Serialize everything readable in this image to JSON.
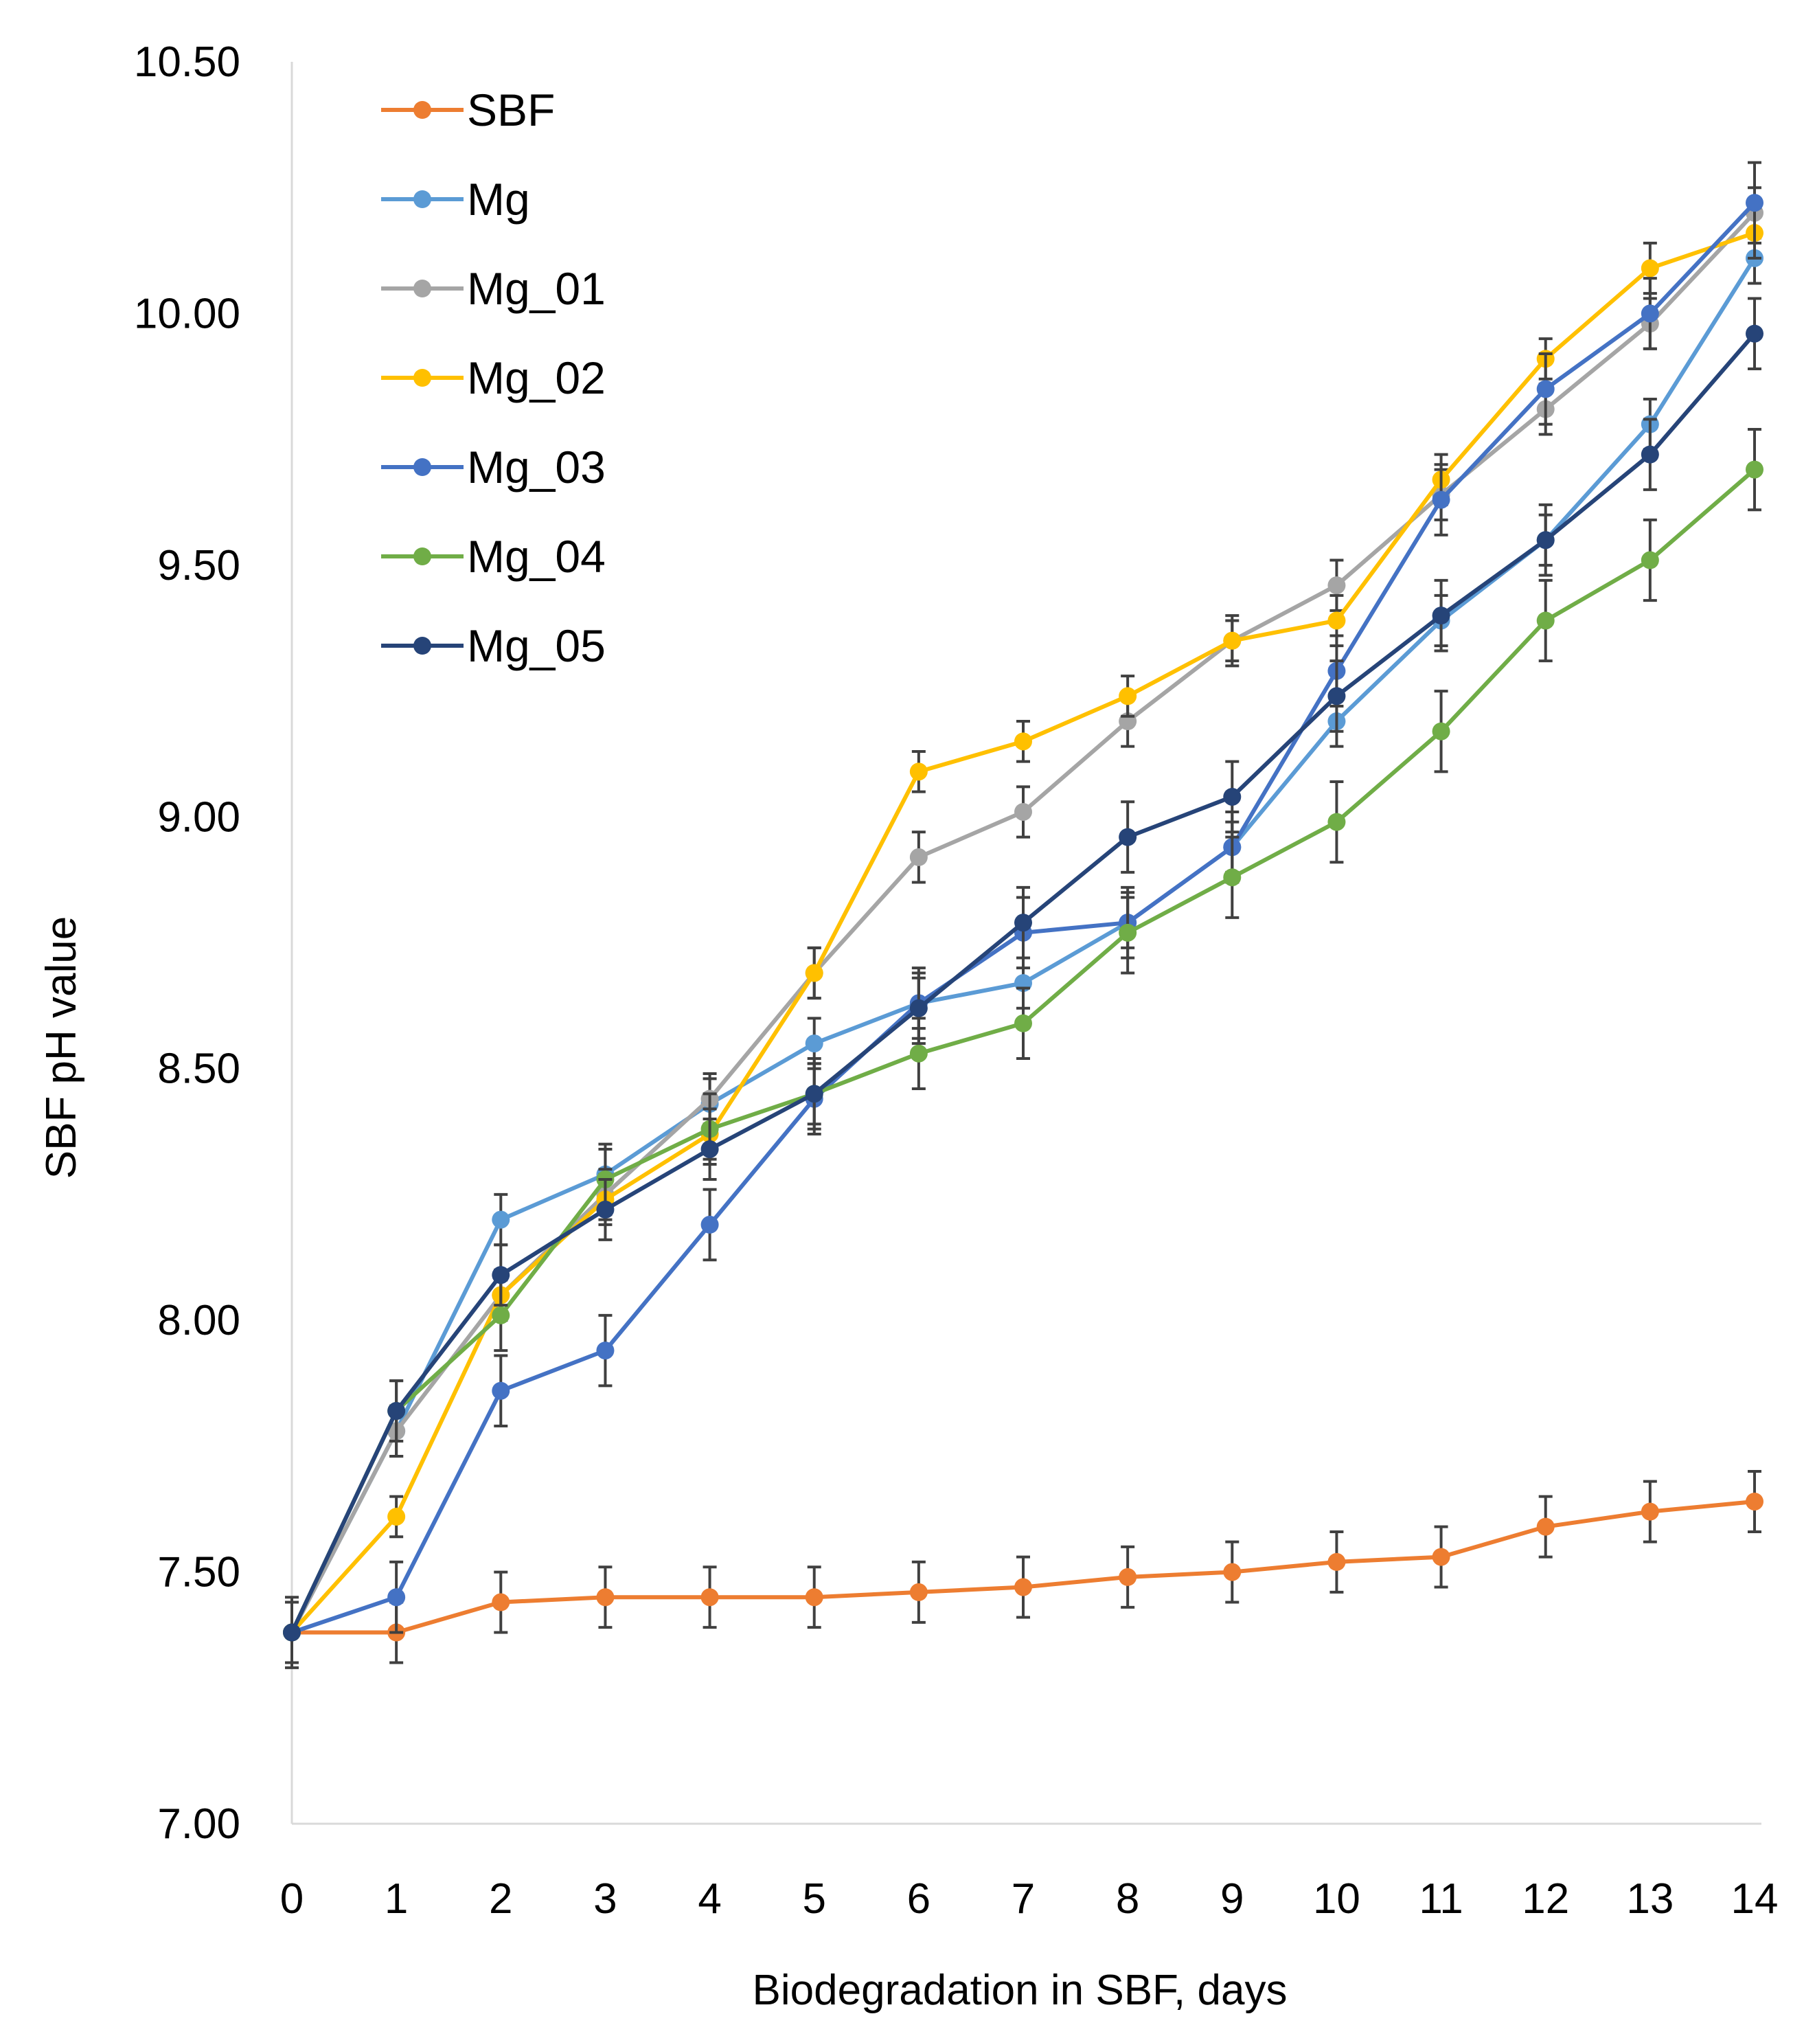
{
  "chart_data": {
    "type": "line",
    "title": "",
    "xlabel": "Biodegradation in SBF, days",
    "ylabel": "SBF pH value",
    "xlim": [
      0,
      14
    ],
    "ylim": [
      7.0,
      10.5
    ],
    "x_ticks": [
      "0",
      "1",
      "2",
      "3",
      "4",
      "5",
      "6",
      "7",
      "8",
      "9",
      "10",
      "11",
      "12",
      "13",
      "14"
    ],
    "y_ticks": [
      "7.00",
      "7.50",
      "8.00",
      "8.50",
      "9.00",
      "9.50",
      "10.00",
      "10.50"
    ],
    "grid": false,
    "legend_position": "top-left",
    "error_bars": true,
    "x": [
      0,
      1,
      2,
      3,
      4,
      5,
      6,
      7,
      8,
      9,
      10,
      11,
      12,
      13,
      14
    ],
    "series": [
      {
        "name": "SBF",
        "color": "#ED7D31",
        "values": [
          7.38,
          7.38,
          7.44,
          7.45,
          7.45,
          7.45,
          7.46,
          7.47,
          7.49,
          7.5,
          7.52,
          7.53,
          7.59,
          7.62,
          7.64
        ],
        "errors": [
          0.07,
          0.06,
          0.06,
          0.06,
          0.06,
          0.06,
          0.06,
          0.06,
          0.06,
          0.06,
          0.06,
          0.06,
          0.06,
          0.06,
          0.06
        ]
      },
      {
        "name": "Mg",
        "color": "#5B9BD5",
        "values": [
          7.38,
          7.78,
          8.2,
          8.29,
          8.43,
          8.55,
          8.63,
          8.67,
          8.79,
          8.94,
          9.19,
          9.39,
          9.55,
          9.78,
          10.11
        ],
        "errors": [
          0.06,
          0.05,
          0.05,
          0.05,
          0.05,
          0.05,
          0.05,
          0.05,
          0.05,
          0.05,
          0.05,
          0.05,
          0.05,
          0.05,
          0.05
        ]
      },
      {
        "name": "Mg_01",
        "color": "#A5A5A5",
        "values": [
          7.38,
          7.78,
          8.05,
          8.25,
          8.44,
          8.69,
          8.92,
          9.01,
          9.19,
          9.35,
          9.46,
          9.64,
          9.81,
          9.98,
          10.2
        ],
        "errors": [
          0.06,
          0.05,
          0.05,
          0.05,
          0.05,
          0.05,
          0.05,
          0.05,
          0.05,
          0.05,
          0.05,
          0.05,
          0.05,
          0.05,
          0.05
        ]
      },
      {
        "name": "Mg_02",
        "color": "#FFC000",
        "values": [
          7.38,
          7.61,
          8.05,
          8.24,
          8.37,
          8.69,
          9.09,
          9.15,
          9.24,
          9.35,
          9.39,
          9.67,
          9.91,
          10.09,
          10.16
        ],
        "errors": [
          0.06,
          0.04,
          0.05,
          0.05,
          0.05,
          0.05,
          0.04,
          0.04,
          0.04,
          0.04,
          0.05,
          0.05,
          0.04,
          0.05,
          0.05
        ]
      },
      {
        "name": "Mg_03",
        "color": "#4472C4",
        "values": [
          7.38,
          7.45,
          7.86,
          7.94,
          8.19,
          8.44,
          8.63,
          8.77,
          8.79,
          8.94,
          9.29,
          9.63,
          9.85,
          10.0,
          10.22
        ],
        "errors": [
          0.06,
          0.07,
          0.07,
          0.07,
          0.07,
          0.07,
          0.07,
          0.07,
          0.07,
          0.07,
          0.07,
          0.07,
          0.07,
          0.07,
          0.08
        ]
      },
      {
        "name": "Mg_04",
        "color": "#70AD47",
        "values": [
          7.38,
          7.82,
          8.01,
          8.28,
          8.38,
          8.45,
          8.53,
          8.59,
          8.77,
          8.88,
          8.99,
          9.17,
          9.39,
          9.51,
          9.69
        ],
        "errors": [
          0.06,
          0.06,
          0.07,
          0.07,
          0.07,
          0.07,
          0.07,
          0.07,
          0.08,
          0.08,
          0.08,
          0.08,
          0.08,
          0.08,
          0.08
        ]
      },
      {
        "name": "Mg_05",
        "color": "#264478",
        "values": [
          7.38,
          7.82,
          8.09,
          8.22,
          8.34,
          8.45,
          8.62,
          8.79,
          8.96,
          9.04,
          9.24,
          9.4,
          9.55,
          9.72,
          9.96
        ],
        "errors": [
          0.06,
          0.06,
          0.06,
          0.06,
          0.06,
          0.06,
          0.07,
          0.07,
          0.07,
          0.07,
          0.07,
          0.07,
          0.07,
          0.07,
          0.07
        ]
      }
    ]
  }
}
